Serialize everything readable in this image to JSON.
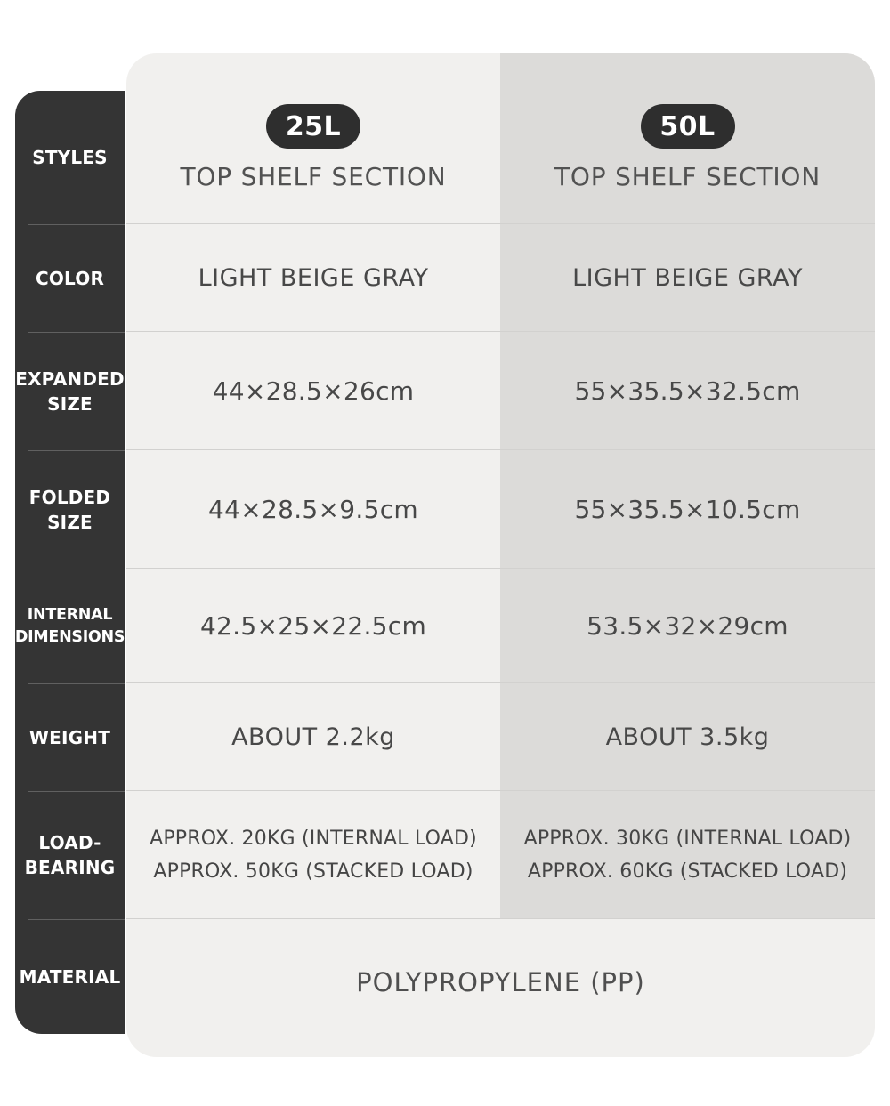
{
  "title": "Folding storage box specification comparison table",
  "colors": {
    "page_background": "#ffffff",
    "sidebar_background": "#343434",
    "left_column_background": "#f1f0ee",
    "right_column_background": "#dcdbd9",
    "badge_background": "#2e2e2e",
    "divider": "#d2d1cf",
    "value_text": "#4a4a4a",
    "sidebar_text": "#ffffff"
  },
  "sidebar": {
    "rows": [
      {
        "label": "STYLES"
      },
      {
        "label": "COLOR"
      },
      {
        "label": "EXPANDED\nSIZE"
      },
      {
        "label": "FOLDED\nSIZE"
      },
      {
        "label": "INTERNAL\nDIMENSIONS"
      },
      {
        "label": "WEIGHT"
      },
      {
        "label": "LOAD-\nBEARING"
      },
      {
        "label": "MATERIAL"
      }
    ]
  },
  "columns": [
    {
      "badge": "25L",
      "header": "TOP SHELF SECTION",
      "color": "LIGHT BEIGE GRAY",
      "expanded_size": "44×28.5×26cm",
      "folded_size": "44×28.5×9.5cm",
      "internal_dimensions": "42.5×25×22.5cm",
      "weight": "ABOUT 2.2kg",
      "load_bearing": [
        "APPROX. 20KG (INTERNAL LOAD)",
        "APPROX. 50KG (STACKED LOAD)"
      ]
    },
    {
      "badge": "50L",
      "header": "TOP SHELF SECTION",
      "color": "LIGHT BEIGE GRAY",
      "expanded_size": "55×35.5×32.5cm",
      "folded_size": "55×35.5×10.5cm",
      "internal_dimensions": "53.5×32×29cm",
      "weight": "ABOUT 3.5kg",
      "load_bearing": [
        "APPROX. 30KG (INTERNAL LOAD)",
        "APPROX. 60KG (STACKED LOAD)"
      ]
    }
  ],
  "material": {
    "value": "POLYPROPYLENE (PP)"
  },
  "chart_data": {
    "type": "table",
    "title": "Folding storage box specifications",
    "column_headers": [
      "25L TOP SHELF SECTION",
      "50L TOP SHELF SECTION"
    ],
    "row_headers": [
      "STYLES",
      "COLOR",
      "EXPANDED SIZE",
      "FOLDED SIZE",
      "INTERNAL DIMENSIONS",
      "WEIGHT",
      "LOAD-BEARING",
      "MATERIAL"
    ],
    "cells": [
      [
        "TOP SHELF SECTION",
        "TOP SHELF SECTION"
      ],
      [
        "LIGHT BEIGE GRAY",
        "LIGHT BEIGE GRAY"
      ],
      [
        "44×28.5×26cm",
        "55×35.5×32.5cm"
      ],
      [
        "44×28.5×9.5cm",
        "55×35.5×10.5cm"
      ],
      [
        "42.5×25×22.5cm",
        "53.5×32×29cm"
      ],
      [
        "ABOUT 2.2kg",
        "ABOUT 3.5kg"
      ],
      [
        "APPROX. 20KG (INTERNAL LOAD) / APPROX. 50KG (STACKED LOAD)",
        "APPROX. 30KG (INTERNAL LOAD) / APPROX. 60KG (STACKED LOAD)"
      ],
      [
        "POLYPROPYLENE (PP)",
        "POLYPROPYLENE (PP)"
      ]
    ]
  }
}
